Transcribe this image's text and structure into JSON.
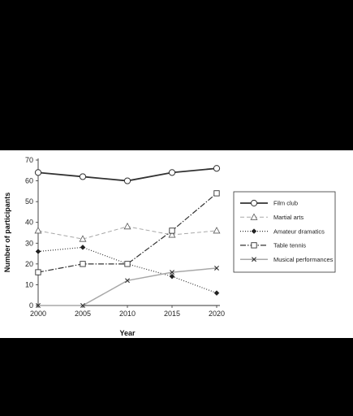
{
  "chart_data": {
    "type": "line",
    "title": "",
    "xlabel": "Year",
    "ylabel": "Number of participants",
    "x": [
      2000,
      2005,
      2010,
      2015,
      2020
    ],
    "xlim": [
      2000,
      2020
    ],
    "ylim": [
      0,
      70
    ],
    "yticks": [
      0,
      10,
      20,
      30,
      40,
      50,
      60,
      70
    ],
    "grid": false,
    "legend_position": "right",
    "series": [
      {
        "name": "Film club",
        "values": [
          64,
          62,
          60,
          64,
          66
        ],
        "marker": "circle",
        "line": "solid-thick",
        "color": "#333333"
      },
      {
        "name": "Martial arts",
        "values": [
          36,
          32,
          38,
          34,
          36
        ],
        "marker": "triangle",
        "line": "dashed",
        "color": "#a8a8a8"
      },
      {
        "name": "Amateur dramatics",
        "values": [
          26,
          28,
          20,
          14,
          6
        ],
        "marker": "diamond",
        "line": "dotted",
        "color": "#333333"
      },
      {
        "name": "Table tennis",
        "values": [
          16,
          20,
          20,
          36,
          54
        ],
        "marker": "square",
        "line": "dash-dot",
        "color": "#333333"
      },
      {
        "name": "Musical performances",
        "values": [
          0,
          0,
          12,
          16,
          18
        ],
        "marker": "cross",
        "line": "solid-thin",
        "color": "#a8a8a8"
      }
    ]
  }
}
